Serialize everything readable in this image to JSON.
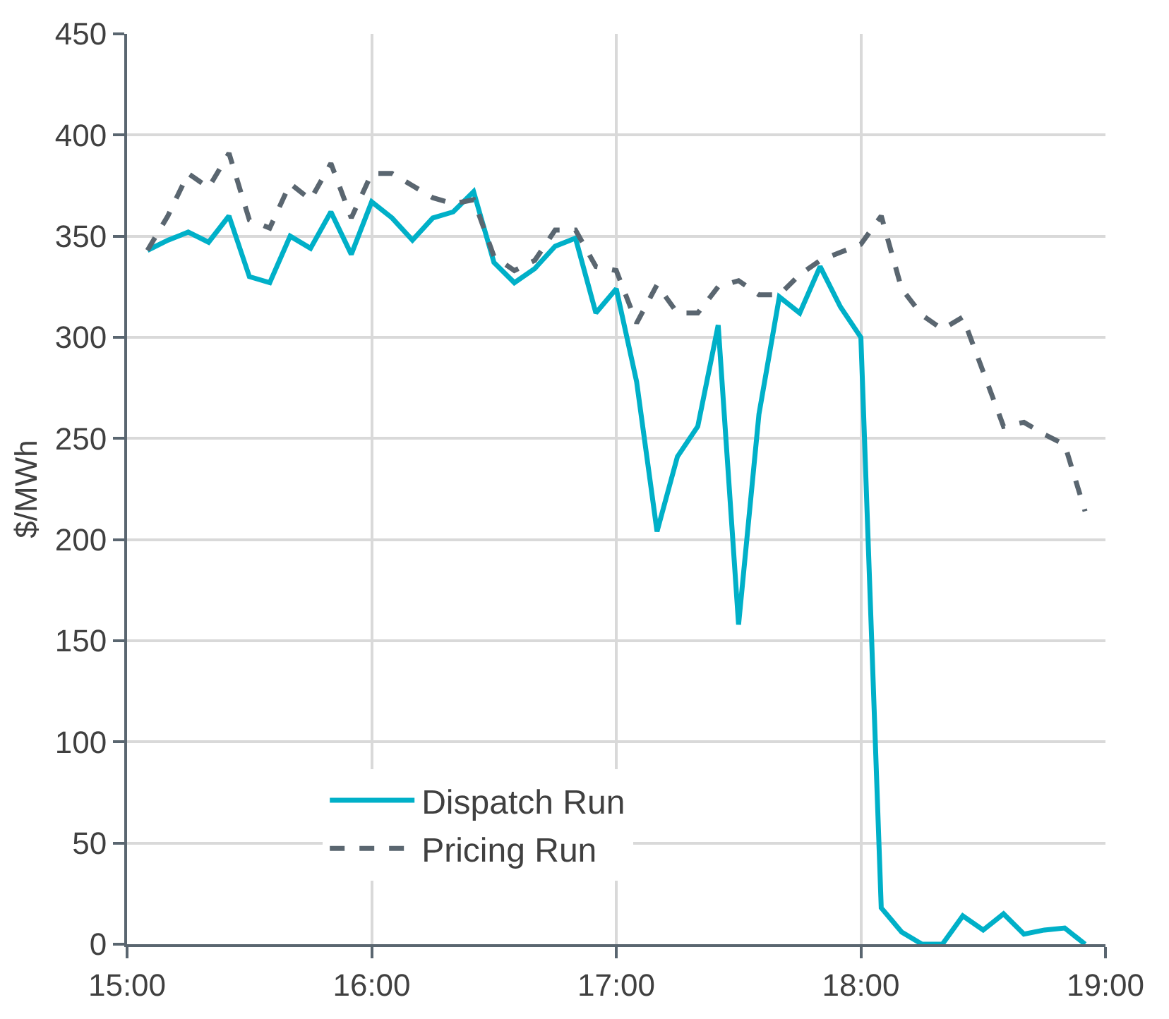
{
  "chart_data": {
    "type": "line",
    "ylabel": "$/MWh",
    "x": [
      15.0833,
      15.1667,
      15.25,
      15.3333,
      15.4167,
      15.5,
      15.5833,
      15.6667,
      15.75,
      15.8333,
      15.9167,
      16.0,
      16.0833,
      16.1667,
      16.25,
      16.3333,
      16.4167,
      16.5,
      16.5833,
      16.6667,
      16.75,
      16.8333,
      16.9167,
      17.0,
      17.0833,
      17.1667,
      17.25,
      17.3333,
      17.4167,
      17.5,
      17.5833,
      17.6667,
      17.75,
      17.8333,
      17.9167,
      18.0,
      18.0833,
      18.1667,
      18.25,
      18.3333,
      18.4167,
      18.5,
      18.5833,
      18.6667,
      18.75,
      18.8333,
      18.9167
    ],
    "series": [
      {
        "name": "Dispatch Run",
        "color": "#00b0c8",
        "line_style": "solid",
        "values": [
          343,
          348,
          352,
          347,
          360,
          330,
          327,
          350,
          344,
          362,
          341,
          367,
          359,
          348,
          359,
          362,
          372,
          337,
          327,
          334,
          345,
          349,
          312,
          324,
          278,
          204,
          241,
          256,
          306,
          158,
          262,
          320,
          312,
          335,
          315,
          300,
          18,
          6,
          0,
          0,
          14,
          7,
          15,
          5,
          7,
          8,
          0
        ]
      },
      {
        "name": "Pricing Run",
        "color": "#5a6670",
        "line_style": "dashed",
        "values": [
          343,
          360,
          381,
          374,
          391,
          358,
          354,
          376,
          368,
          386,
          359,
          381,
          381,
          375,
          369,
          366,
          368,
          340,
          333,
          338,
          353,
          353,
          335,
          333,
          307,
          326,
          312,
          312,
          325,
          328,
          321,
          321,
          331,
          338,
          342,
          346,
          360,
          324,
          311,
          304,
          310,
          283,
          256,
          258,
          252,
          247,
          214
        ]
      }
    ],
    "xlim": [
      15,
      19
    ],
    "xticks": [
      {
        "value": 15,
        "label": "15:00"
      },
      {
        "value": 16,
        "label": "16:00"
      },
      {
        "value": 17,
        "label": "17:00"
      },
      {
        "value": 18,
        "label": "18:00"
      },
      {
        "value": 19,
        "label": "19:00"
      }
    ],
    "ylim": [
      0,
      450
    ],
    "yticks": [
      0,
      50,
      100,
      150,
      200,
      250,
      300,
      350,
      400,
      450
    ],
    "grid": true,
    "legend": "bottom left",
    "marker": "none"
  }
}
